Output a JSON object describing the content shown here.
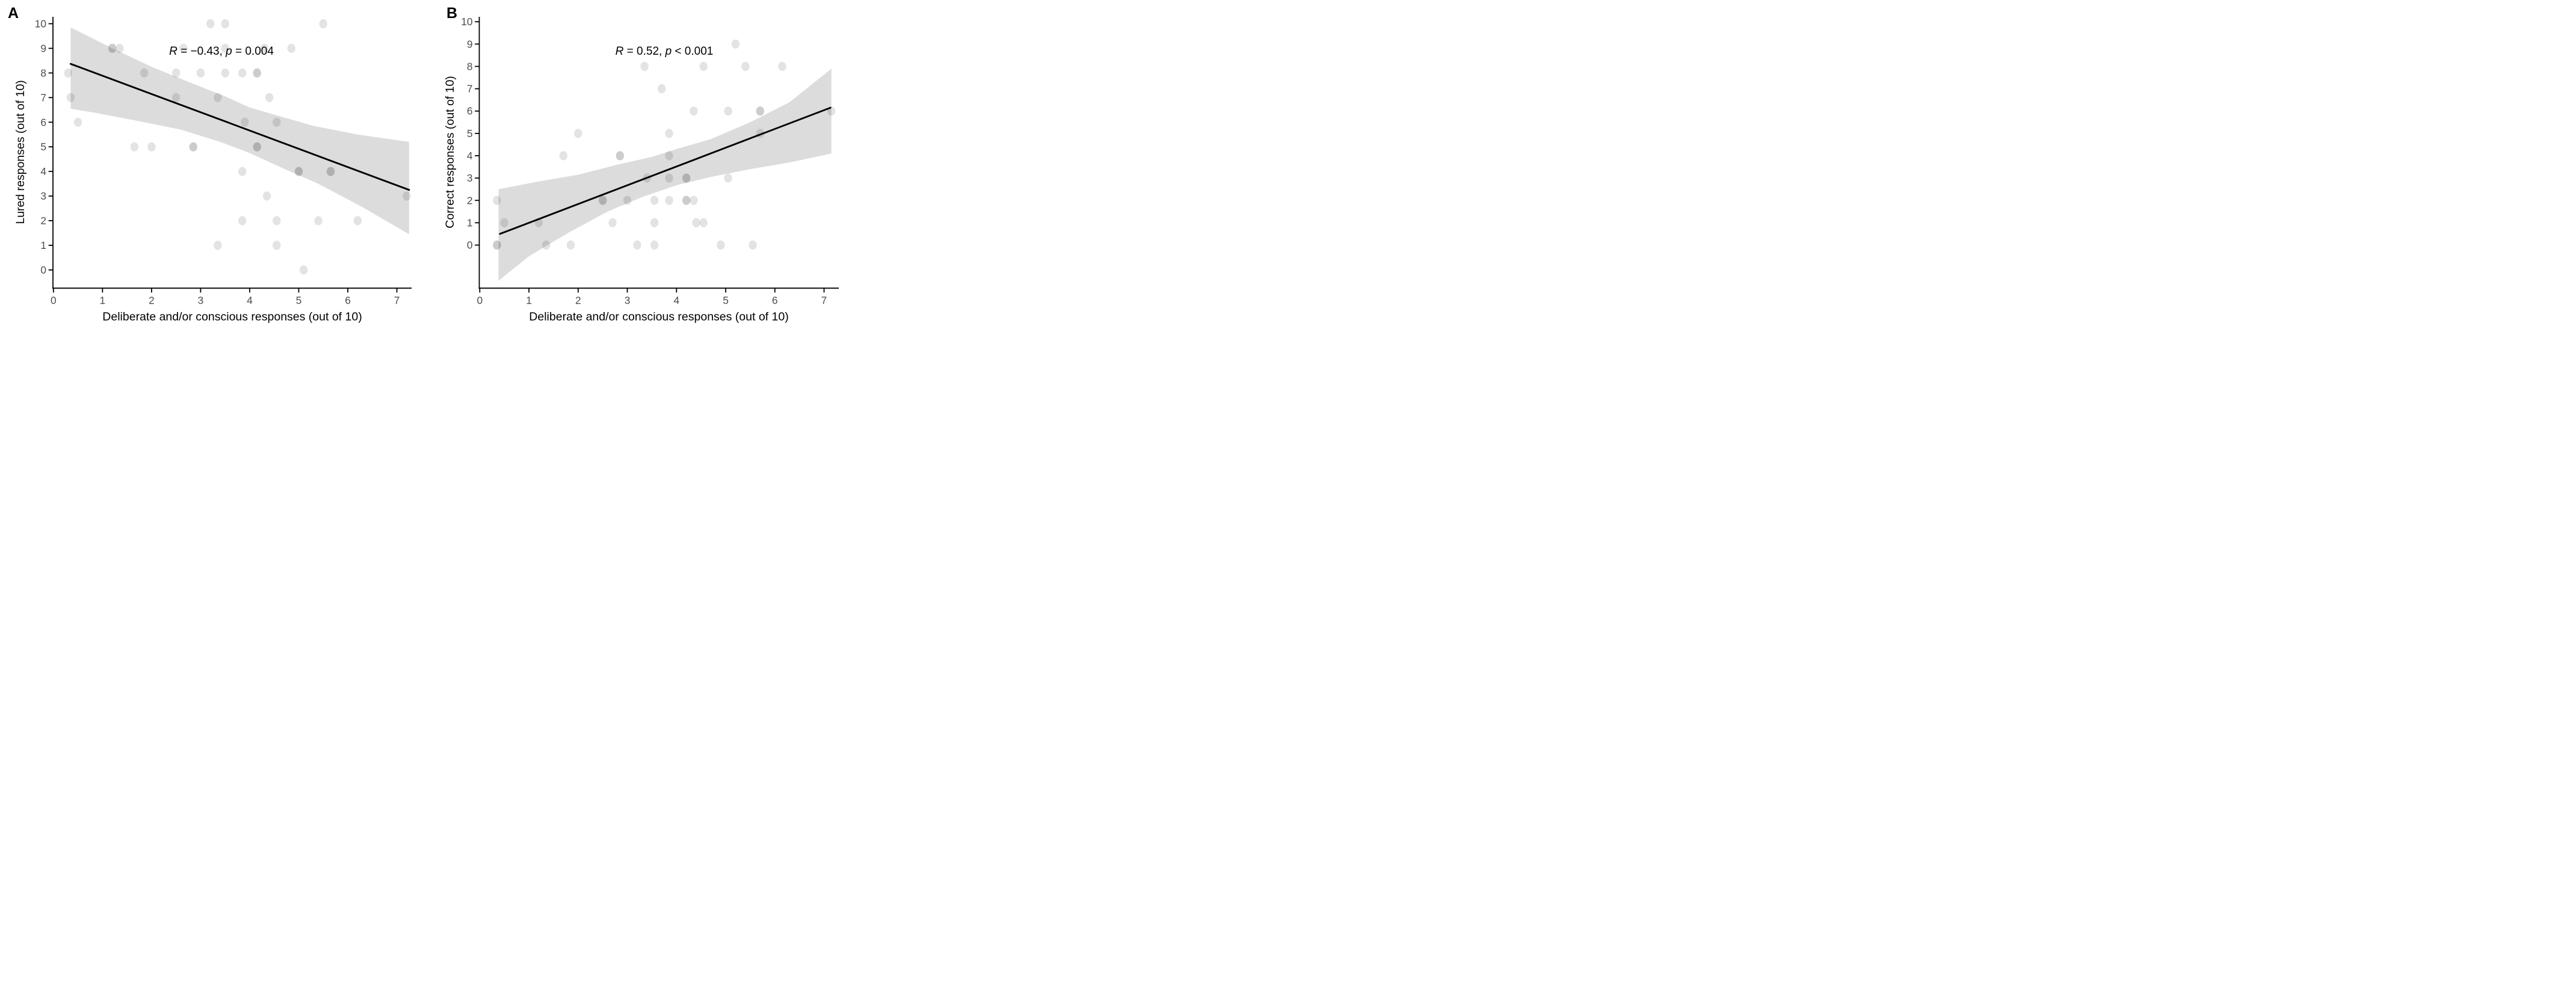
{
  "figure": {
    "background": "#ffffff",
    "panel_count": 2
  },
  "colors": {
    "point_fill": "#000000",
    "point_opacity_single": 0.11,
    "point_opacity_double": 0.2,
    "ci_band_fill": "#dcdcdc",
    "trend_line": "#000000",
    "axis_line": "#000000",
    "tick_text": "#4d4d4d",
    "label_text": "#000000"
  },
  "chart_data": [
    {
      "type": "scatter",
      "panel_label": "A",
      "xlabel": "Deliberate and/or conscious responses (out of 10)",
      "ylabel": "Lured responses (out of 10)",
      "annotation": {
        "r_label": "R",
        "r_text": " = −0.43, ",
        "p_label": "p",
        "p_text": " = 0.004"
      },
      "stats": {
        "R": -0.43,
        "p": "0.004"
      },
      "xlim": [
        -0.01,
        7.3
      ],
      "ylim": [
        -0.74,
        10.28
      ],
      "xticks": [
        "0",
        "1",
        "2",
        "3",
        "4",
        "5",
        "6",
        "7"
      ],
      "yticks": [
        "0",
        "1",
        "2",
        "3",
        "4",
        "5",
        "6",
        "7",
        "8",
        "9",
        "10"
      ],
      "grid": false,
      "legend": "none",
      "trend": {
        "x1": 0.35,
        "y1": 8.37,
        "x2": 7.25,
        "y2": 3.25
      },
      "band": {
        "top": [
          [
            0.35,
            9.85
          ],
          [
            1.2,
            9.0
          ],
          [
            2.0,
            8.25
          ],
          [
            2.8,
            7.6
          ],
          [
            3.5,
            7.05
          ],
          [
            4.0,
            6.6
          ],
          [
            4.6,
            6.25
          ],
          [
            5.3,
            5.85
          ],
          [
            6.2,
            5.5
          ],
          [
            7.25,
            5.2
          ]
        ],
        "bottom": [
          [
            7.25,
            1.45
          ],
          [
            6.3,
            2.55
          ],
          [
            5.4,
            3.5
          ],
          [
            4.6,
            4.2
          ],
          [
            4.0,
            4.75
          ],
          [
            3.4,
            5.2
          ],
          [
            2.6,
            5.7
          ],
          [
            1.6,
            6.1
          ],
          [
            0.8,
            6.4
          ],
          [
            0.35,
            6.55
          ]
        ]
      },
      "points": [
        {
          "x": 3.2,
          "y": 10,
          "n": 1
        },
        {
          "x": 3.5,
          "y": 10,
          "n": 1
        },
        {
          "x": 5.5,
          "y": 10,
          "n": 1
        },
        {
          "x": 1.2,
          "y": 9,
          "n": 2
        },
        {
          "x": 1.35,
          "y": 9,
          "n": 1
        },
        {
          "x": 2.65,
          "y": 9,
          "n": 1
        },
        {
          "x": 3.5,
          "y": 9,
          "n": 1
        },
        {
          "x": 4.3,
          "y": 9,
          "n": 1
        },
        {
          "x": 4.85,
          "y": 9,
          "n": 1
        },
        {
          "x": 0.3,
          "y": 8,
          "n": 1
        },
        {
          "x": 1.85,
          "y": 8,
          "n": 1
        },
        {
          "x": 2.5,
          "y": 8,
          "n": 1
        },
        {
          "x": 3.0,
          "y": 8,
          "n": 1
        },
        {
          "x": 3.5,
          "y": 8,
          "n": 1
        },
        {
          "x": 3.85,
          "y": 8,
          "n": 1
        },
        {
          "x": 4.15,
          "y": 8,
          "n": 2
        },
        {
          "x": 0.35,
          "y": 7,
          "n": 1
        },
        {
          "x": 2.5,
          "y": 7,
          "n": 1
        },
        {
          "x": 3.35,
          "y": 7,
          "n": 1
        },
        {
          "x": 4.4,
          "y": 7,
          "n": 1
        },
        {
          "x": 0.5,
          "y": 6,
          "n": 1
        },
        {
          "x": 3.9,
          "y": 6,
          "n": 1
        },
        {
          "x": 4.55,
          "y": 6,
          "n": 1
        },
        {
          "x": 1.65,
          "y": 5,
          "n": 1
        },
        {
          "x": 2.0,
          "y": 5,
          "n": 1
        },
        {
          "x": 2.85,
          "y": 5,
          "n": 2
        },
        {
          "x": 4.15,
          "y": 5,
          "n": 2
        },
        {
          "x": 3.85,
          "y": 4,
          "n": 1
        },
        {
          "x": 5.0,
          "y": 4,
          "n": 2
        },
        {
          "x": 5.65,
          "y": 4,
          "n": 2
        },
        {
          "x": 4.35,
          "y": 3,
          "n": 1
        },
        {
          "x": 7.2,
          "y": 3,
          "n": 1
        },
        {
          "x": 3.85,
          "y": 2,
          "n": 1
        },
        {
          "x": 4.55,
          "y": 2,
          "n": 1
        },
        {
          "x": 5.4,
          "y": 2,
          "n": 1
        },
        {
          "x": 6.2,
          "y": 2,
          "n": 1
        },
        {
          "x": 3.35,
          "y": 1,
          "n": 1
        },
        {
          "x": 4.55,
          "y": 1,
          "n": 1
        },
        {
          "x": 5.1,
          "y": 0,
          "n": 1
        }
      ]
    },
    {
      "type": "scatter",
      "panel_label": "B",
      "xlabel": "Deliberate and/or conscious responses (out of 10)",
      "ylabel": "Correct responses (out of 10)",
      "annotation": {
        "r_label": "R",
        "r_text": " = 0.52, ",
        "p_label": "p",
        "p_text": " < 0.001"
      },
      "stats": {
        "R": 0.52,
        "p": "<0.001"
      },
      "xlim": [
        -0.01,
        7.3
      ],
      "ylim": [
        -1.93,
        10.22
      ],
      "xticks": [
        "0",
        "1",
        "2",
        "3",
        "4",
        "5",
        "6",
        "7"
      ],
      "yticks": [
        "0",
        "1",
        "2",
        "3",
        "4",
        "5",
        "6",
        "7",
        "8",
        "9",
        "10"
      ],
      "grid": false,
      "legend": "none",
      "trend": {
        "x1": 0.41,
        "y1": 0.5,
        "x2": 7.13,
        "y2": 6.15
      },
      "band": {
        "top": [
          [
            0.38,
            2.5
          ],
          [
            1.2,
            2.85
          ],
          [
            2.0,
            3.15
          ],
          [
            2.8,
            3.6
          ],
          [
            3.5,
            3.95
          ],
          [
            4.0,
            4.3
          ],
          [
            4.7,
            4.75
          ],
          [
            5.5,
            5.5
          ],
          [
            6.3,
            6.4
          ],
          [
            7.15,
            7.9
          ]
        ],
        "bottom": [
          [
            7.15,
            4.1
          ],
          [
            6.3,
            3.7
          ],
          [
            5.5,
            3.4
          ],
          [
            4.7,
            3.05
          ],
          [
            4.0,
            2.68
          ],
          [
            3.3,
            2.15
          ],
          [
            2.6,
            1.5
          ],
          [
            1.8,
            0.55
          ],
          [
            1.0,
            -0.5
          ],
          [
            0.38,
            -1.6
          ]
        ]
      },
      "points": [
        {
          "x": 5.2,
          "y": 9,
          "n": 1
        },
        {
          "x": 3.35,
          "y": 8,
          "n": 1
        },
        {
          "x": 4.55,
          "y": 8,
          "n": 1
        },
        {
          "x": 5.4,
          "y": 8,
          "n": 1
        },
        {
          "x": 6.15,
          "y": 8,
          "n": 1
        },
        {
          "x": 3.7,
          "y": 7,
          "n": 1
        },
        {
          "x": 4.35,
          "y": 6,
          "n": 1
        },
        {
          "x": 5.05,
          "y": 6,
          "n": 1
        },
        {
          "x": 5.7,
          "y": 6,
          "n": 2
        },
        {
          "x": 7.15,
          "y": 6,
          "n": 1
        },
        {
          "x": 2.0,
          "y": 5,
          "n": 1
        },
        {
          "x": 3.85,
          "y": 5,
          "n": 1
        },
        {
          "x": 5.7,
          "y": 5,
          "n": 1
        },
        {
          "x": 1.7,
          "y": 4,
          "n": 1
        },
        {
          "x": 2.85,
          "y": 4,
          "n": 2
        },
        {
          "x": 3.85,
          "y": 4,
          "n": 1
        },
        {
          "x": 3.4,
          "y": 3,
          "n": 1
        },
        {
          "x": 3.85,
          "y": 3,
          "n": 1
        },
        {
          "x": 4.2,
          "y": 3,
          "n": 2
        },
        {
          "x": 5.05,
          "y": 3,
          "n": 1
        },
        {
          "x": 0.35,
          "y": 2,
          "n": 1
        },
        {
          "x": 2.5,
          "y": 2,
          "n": 2
        },
        {
          "x": 3.0,
          "y": 2,
          "n": 1
        },
        {
          "x": 3.55,
          "y": 2,
          "n": 1
        },
        {
          "x": 3.85,
          "y": 2,
          "n": 1
        },
        {
          "x": 4.2,
          "y": 2,
          "n": 2
        },
        {
          "x": 4.35,
          "y": 2,
          "n": 1
        },
        {
          "x": 0.5,
          "y": 1,
          "n": 1
        },
        {
          "x": 1.2,
          "y": 1,
          "n": 1
        },
        {
          "x": 2.7,
          "y": 1,
          "n": 1
        },
        {
          "x": 3.55,
          "y": 1,
          "n": 1
        },
        {
          "x": 4.4,
          "y": 1,
          "n": 1
        },
        {
          "x": 4.55,
          "y": 1,
          "n": 1
        },
        {
          "x": 0.35,
          "y": 0,
          "n": 2
        },
        {
          "x": 1.35,
          "y": 0,
          "n": 1
        },
        {
          "x": 1.85,
          "y": 0,
          "n": 1
        },
        {
          "x": 3.2,
          "y": 0,
          "n": 1
        },
        {
          "x": 3.55,
          "y": 0,
          "n": 1
        },
        {
          "x": 4.9,
          "y": 0,
          "n": 1
        },
        {
          "x": 5.55,
          "y": 0,
          "n": 1
        }
      ]
    }
  ]
}
